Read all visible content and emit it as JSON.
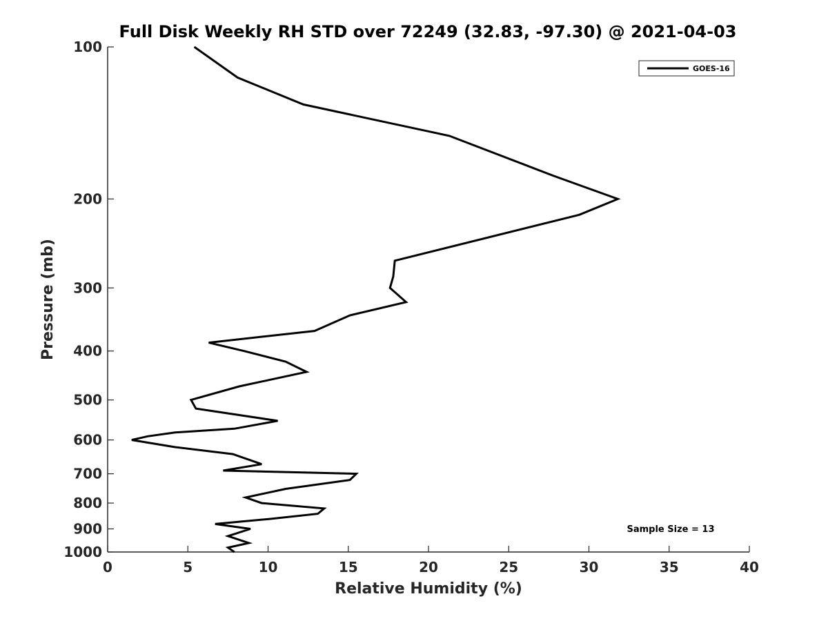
{
  "chart_data": {
    "type": "line",
    "title": "Full Disk Weekly RH STD over 72249 (32.83, -97.30) @ 2021-04-03",
    "xlabel": "Relative Humidity (%)",
    "ylabel": "Pressure (mb)",
    "xlim": [
      0,
      40
    ],
    "ylim": [
      1000,
      100
    ],
    "yscale": "log",
    "xticks": [
      0,
      5,
      10,
      15,
      20,
      25,
      30,
      35,
      40
    ],
    "yticks": [
      100,
      200,
      300,
      400,
      500,
      600,
      700,
      800,
      900,
      1000
    ],
    "grid": false,
    "legend_position": "top-right",
    "annotation": "Sample Size = 13",
    "series": [
      {
        "name": "GOES-16",
        "color": "#000000",
        "x": [
          5.4,
          8.1,
          12.2,
          21.3,
          27.8,
          31.8,
          29.4,
          17.9,
          17.8,
          17.6,
          18.6,
          15.1,
          12.9,
          6.3,
          8.5,
          11.1,
          12.4,
          8.2,
          5.2,
          5.5,
          10.6,
          7.9,
          4.2,
          2.5,
          1.5,
          4.2,
          7.8,
          9.6,
          7.2,
          15.5,
          15.1,
          11.1,
          8.6,
          9.6,
          13.5,
          13.1,
          10.1,
          6.7,
          8.9,
          7.5,
          8.8,
          7.5,
          7.9
        ],
        "y": [
          100,
          115,
          130,
          150,
          180,
          200,
          215,
          265,
          285,
          300,
          320,
          340,
          365,
          385,
          400,
          420,
          440,
          470,
          500,
          520,
          550,
          570,
          580,
          590,
          600,
          620,
          640,
          670,
          690,
          700,
          720,
          750,
          780,
          800,
          820,
          840,
          860,
          880,
          900,
          930,
          960,
          980,
          1000
        ]
      }
    ]
  }
}
